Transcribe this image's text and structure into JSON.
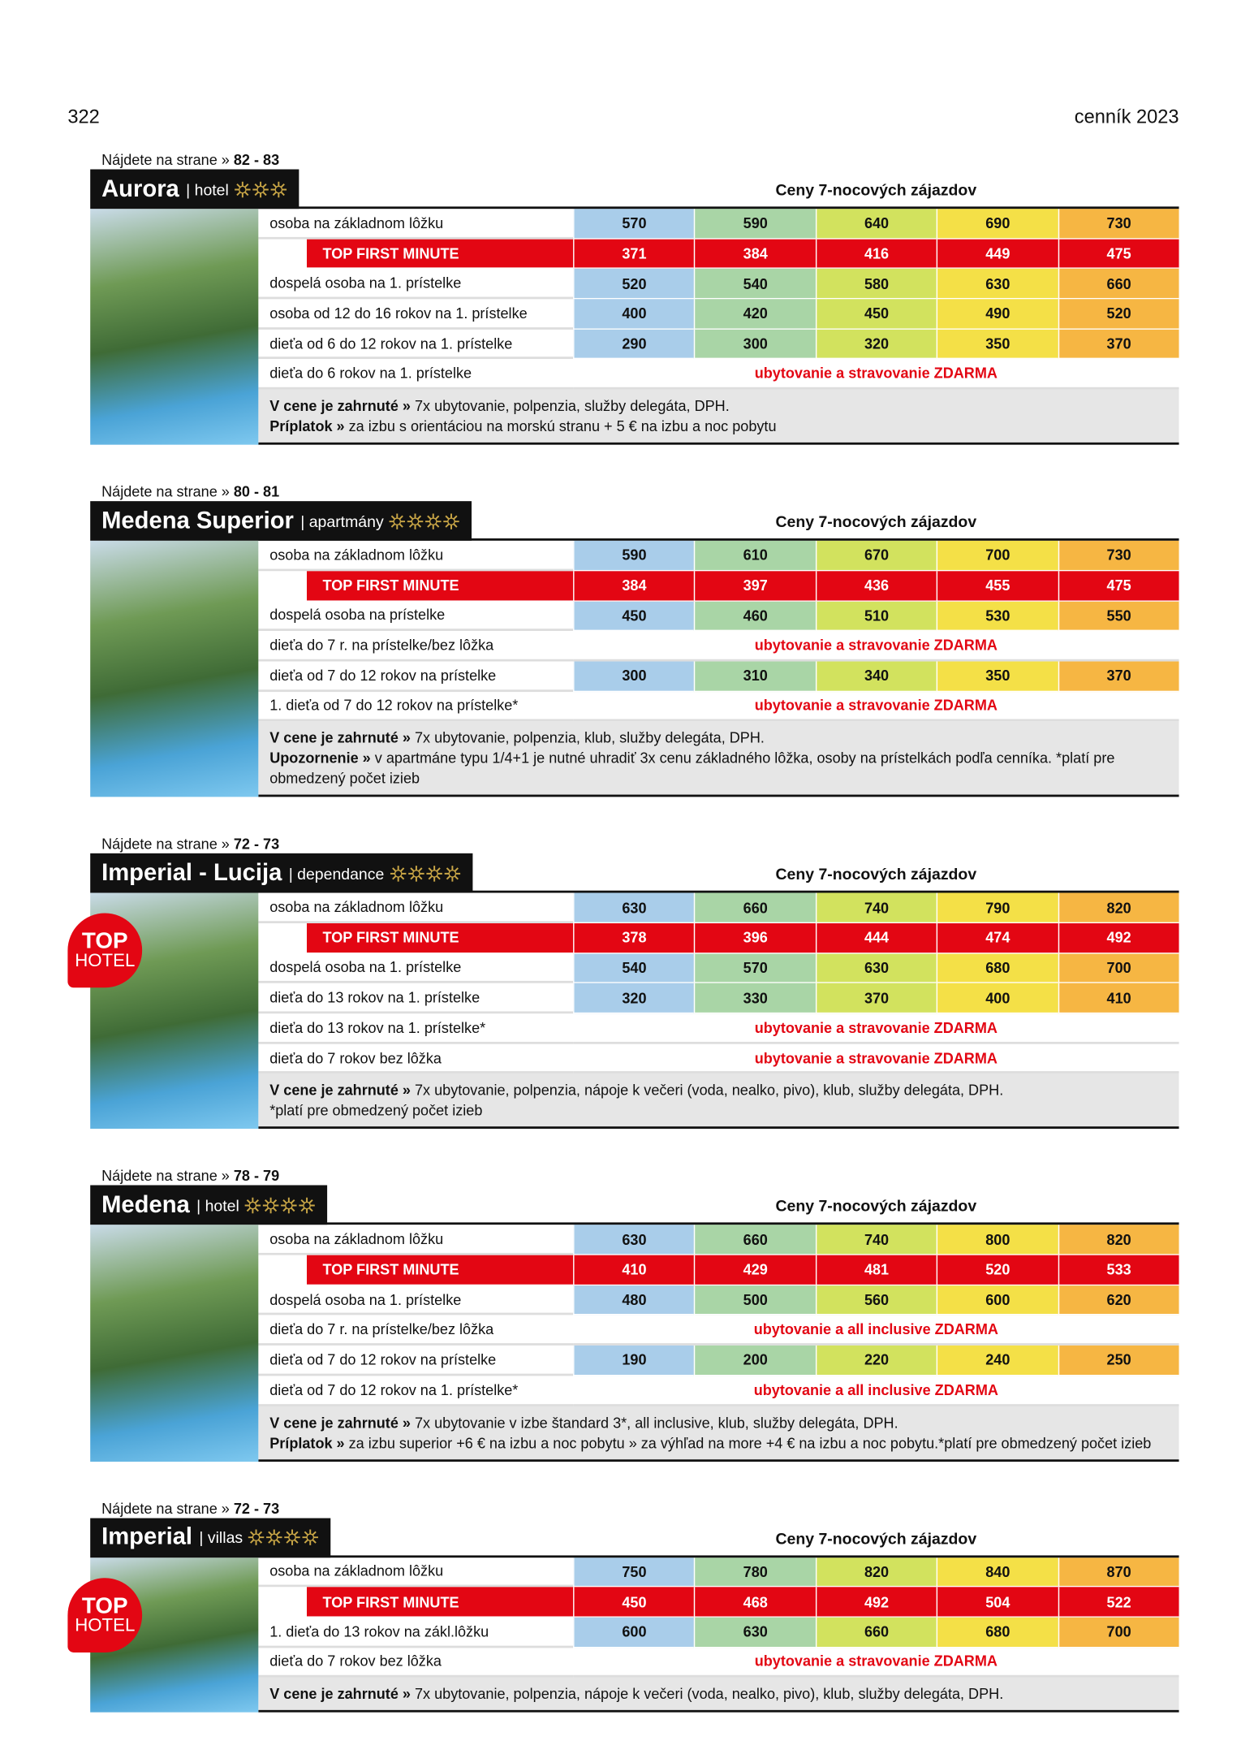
{
  "header": {
    "page_number": "322",
    "title": "cenník 2023"
  },
  "sections": [
    {
      "find_text": "Nájdete na strane »",
      "find_pages": "82 - 83",
      "name": "Aurora",
      "type": "hotel",
      "stars": 3,
      "price_header": "Ceny 7-nocových zájazdov",
      "rows": [
        {
          "label": "osoba na základnom lôžku",
          "values": [
            570,
            590,
            640,
            690,
            730
          ]
        },
        {
          "label": "TOP FIRST MINUTE",
          "highlight": true,
          "values": [
            371,
            384,
            416,
            449,
            475
          ]
        },
        {
          "label": "dospelá osoba na 1. prístelke",
          "values": [
            520,
            540,
            580,
            630,
            660
          ]
        },
        {
          "label": "osoba od 12 do 16 rokov na 1. prístelke",
          "values": [
            400,
            420,
            450,
            490,
            520
          ]
        },
        {
          "label": "dieťa od 6 do 12 rokov na 1. prístelke",
          "values": [
            290,
            300,
            320,
            350,
            370
          ]
        },
        {
          "label": "dieťa do 6 rokov na 1. prístelke",
          "note": "ubytovanie a stravovanie ZDARMA"
        }
      ],
      "notes": [
        {
          "bold": "V cene je zahrnuté »",
          "text": "7x ubytovanie, polpenzia, služby delegáta, DPH."
        },
        {
          "bold": "Príplatok »",
          "text": "za izbu s orientáciou na morskú stranu + 5 € na izbu a noc pobytu"
        }
      ]
    },
    {
      "find_text": "Nájdete na strane »",
      "find_pages": "80 - 81",
      "name": "Medena Superior",
      "type": "apartmány",
      "stars": 4,
      "price_header": "Ceny 7-nocových zájazdov",
      "rows": [
        {
          "label": "osoba na základnom lôžku",
          "values": [
            590,
            610,
            670,
            700,
            730
          ]
        },
        {
          "label": "TOP FIRST MINUTE",
          "highlight": true,
          "values": [
            384,
            397,
            436,
            455,
            475
          ]
        },
        {
          "label": "dospelá osoba na prístelke",
          "values": [
            450,
            460,
            510,
            530,
            550
          ]
        },
        {
          "label": "dieťa do 7 r. na prístelke/bez lôžka",
          "note": "ubytovanie a stravovanie ZDARMA"
        },
        {
          "label": "dieťa od 7 do 12 rokov na prístelke",
          "values": [
            300,
            310,
            340,
            350,
            370
          ]
        },
        {
          "label": "1. dieťa od 7 do 12 rokov na prístelke*",
          "note": "ubytovanie a stravovanie ZDARMA"
        }
      ],
      "notes": [
        {
          "bold": "V cene je zahrnuté »",
          "text": "7x ubytovanie, polpenzia, klub, služby delegáta, DPH."
        },
        {
          "bold": "Upozornenie »",
          "text": "v apartmáne typu 1/4+1 je nutné uhradiť 3x cenu základného lôžka, osoby na prístelkách podľa cenníka. *platí pre obmedzený počet izieb"
        }
      ]
    },
    {
      "find_text": "Nájdete na strane »",
      "find_pages": "72 - 73",
      "name": "Imperial - Lucija",
      "type": "dependance",
      "stars": 4,
      "price_header": "Ceny 7-nocových zájazdov",
      "badge": {
        "line1": "TOP",
        "line2": "HOTEL"
      },
      "rows": [
        {
          "label": "osoba na základnom lôžku",
          "values": [
            630,
            660,
            740,
            790,
            820
          ]
        },
        {
          "label": "TOP FIRST MINUTE",
          "highlight": true,
          "values": [
            378,
            396,
            444,
            474,
            492
          ]
        },
        {
          "label": "dospelá osoba na 1. prístelke",
          "values": [
            540,
            570,
            630,
            680,
            700
          ]
        },
        {
          "label": "dieťa do 13 rokov na 1. prístelke",
          "values": [
            320,
            330,
            370,
            400,
            410
          ]
        },
        {
          "label": "dieťa do 13 rokov na 1. prístelke*",
          "note": "ubytovanie a stravovanie ZDARMA"
        },
        {
          "label": "dieťa do 7 rokov bez lôžka",
          "note": "ubytovanie a stravovanie ZDARMA"
        }
      ],
      "notes": [
        {
          "bold": "V cene je zahrnuté »",
          "text": "7x ubytovanie, polpenzia, nápoje k večeri (voda, nealko, pivo), klub, služby delegáta, DPH."
        },
        {
          "text": "*platí pre obmedzený počet izieb"
        }
      ]
    },
    {
      "find_text": "Nájdete na strane »",
      "find_pages": "78 - 79",
      "name": "Medena",
      "type": "hotel",
      "stars": 4,
      "price_header": "Ceny 7-nocových zájazdov",
      "rows": [
        {
          "label": "osoba na základnom lôžku",
          "values": [
            630,
            660,
            740,
            800,
            820
          ]
        },
        {
          "label": "TOP FIRST MINUTE",
          "highlight": true,
          "values": [
            410,
            429,
            481,
            520,
            533
          ]
        },
        {
          "label": "dospelá osoba na 1. prístelke",
          "values": [
            480,
            500,
            560,
            600,
            620
          ]
        },
        {
          "label": "dieťa do 7 r. na prístelke/bez lôžka",
          "note": "ubytovanie a all inclusive ZDARMA"
        },
        {
          "label": "dieťa od 7 do 12 rokov na prístelke",
          "values": [
            190,
            200,
            220,
            240,
            250
          ]
        },
        {
          "label": "dieťa od 7 do 12 rokov na 1. prístelke*",
          "note": "ubytovanie a all inclusive ZDARMA"
        }
      ],
      "notes": [
        {
          "bold": "V cene je zahrnuté »",
          "text": "7x ubytovanie v izbe štandard 3*, all inclusive, klub, služby delegáta, DPH."
        },
        {
          "bold": "Príplatok »",
          "text": "za izbu superior +6 € na izbu a noc pobytu » za výhľad na more +4 € na izbu a noc pobytu.*platí pre obmedzený počet izieb"
        }
      ]
    },
    {
      "find_text": "Nájdete na strane »",
      "find_pages": "72 - 73",
      "name": "Imperial",
      "type": "villas",
      "stars": 4,
      "price_header": "Ceny 7-nocových zájazdov",
      "badge": {
        "line1": "TOP",
        "line2": "HOTEL"
      },
      "rows": [
        {
          "label": "osoba na základnom lôžku",
          "values": [
            750,
            780,
            820,
            840,
            870
          ]
        },
        {
          "label": "TOP FIRST MINUTE",
          "highlight": true,
          "values": [
            450,
            468,
            492,
            504,
            522
          ]
        },
        {
          "label": "1. dieťa do 13 rokov na zákl.lôžku",
          "values": [
            600,
            630,
            660,
            680,
            700
          ]
        },
        {
          "label": "dieťa do 7 rokov bez lôžka",
          "note": "ubytovanie a stravovanie ZDARMA"
        }
      ],
      "notes": [
        {
          "bold": "V cene je zahrnuté »",
          "text": "7x ubytovanie, polpenzia, nápoje k večeri (voda, nealko, pivo), klub, služby delegáta, DPH."
        }
      ]
    }
  ]
}
